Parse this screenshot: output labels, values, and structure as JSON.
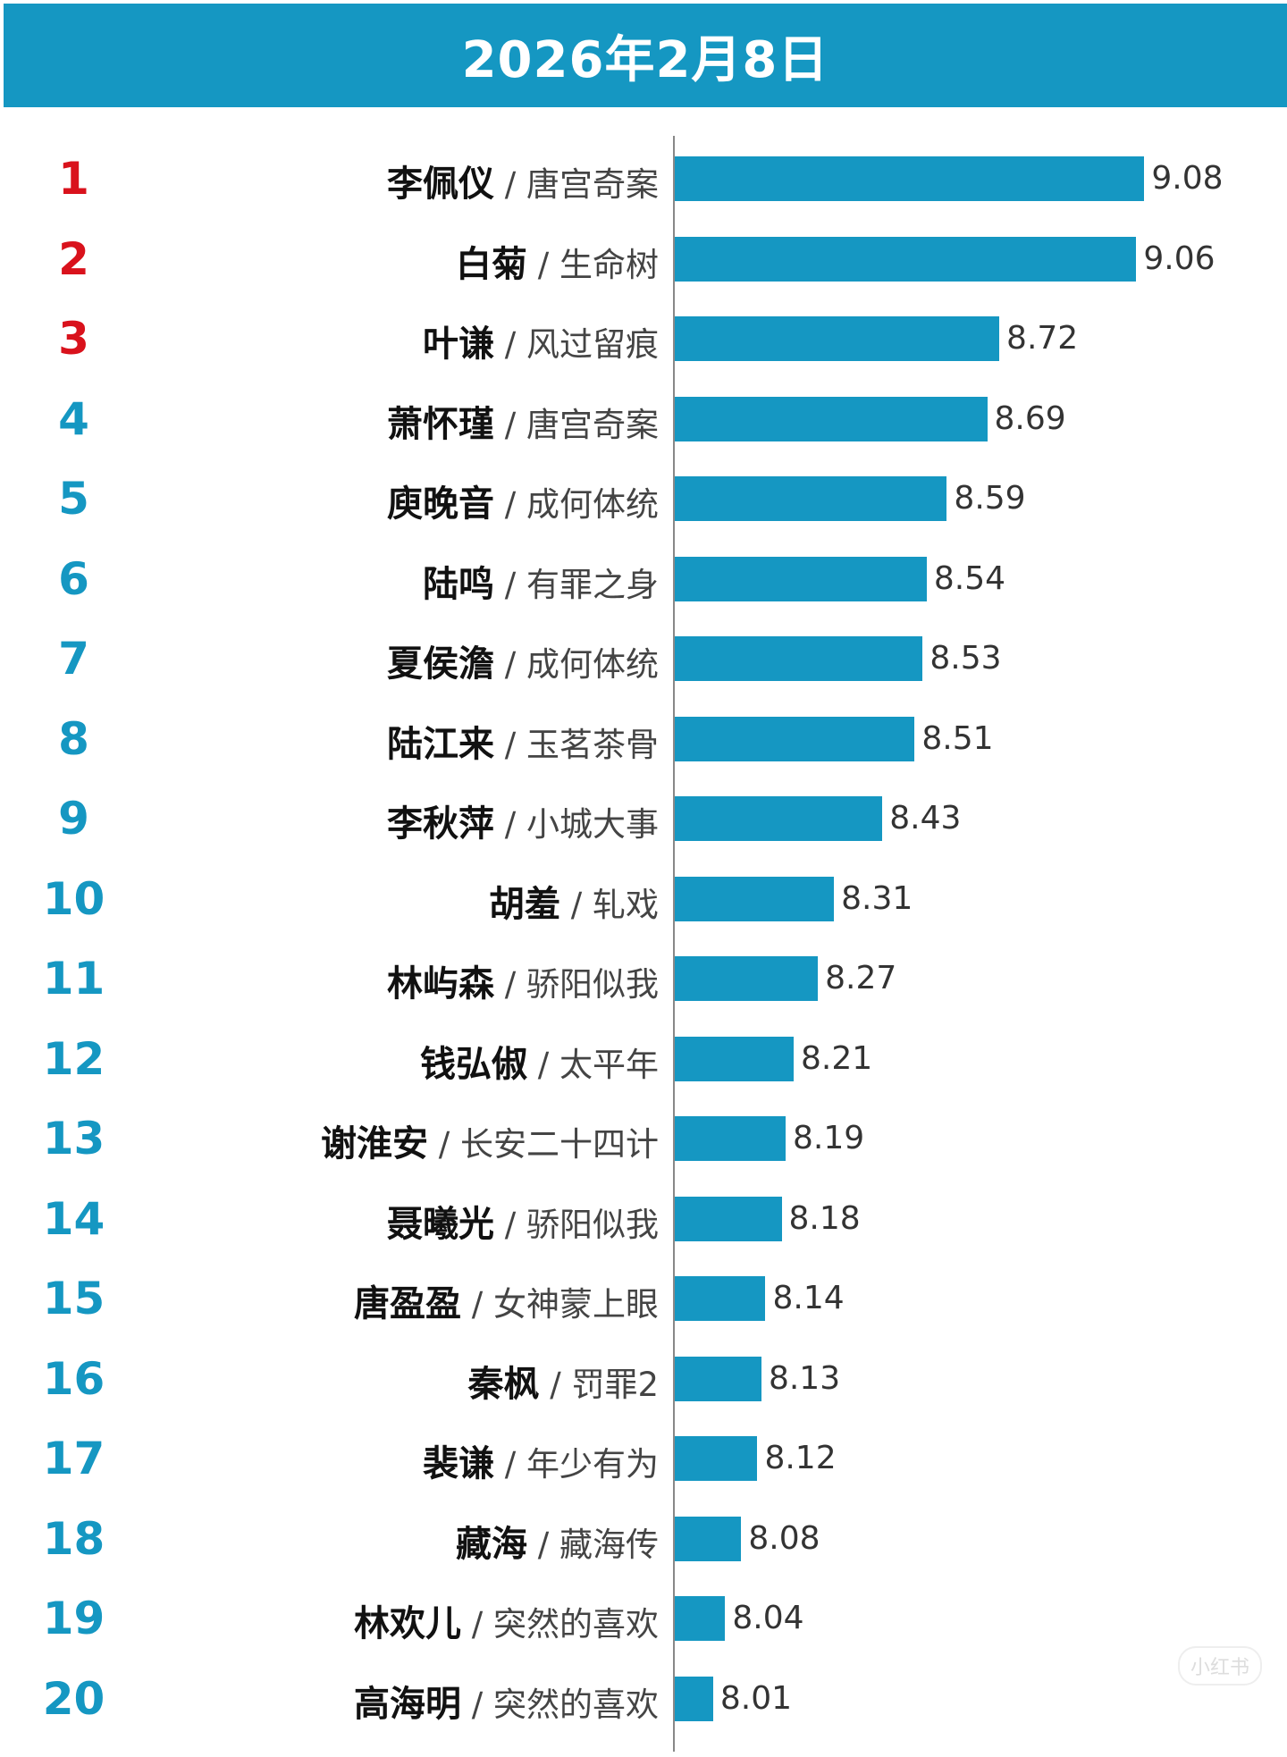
{
  "chart_data": {
    "type": "bar",
    "orientation": "horizontal",
    "title": "2026年2月8日",
    "grid": false,
    "bar_color": "#1597c2",
    "rank_colors": {
      "top3": "#d9121c",
      "others": "#1597c2"
    },
    "rows": [
      {
        "rank": "1",
        "name": "李佩仪",
        "show": "唐宫奇案",
        "value": 9.08
      },
      {
        "rank": "2",
        "name": "白菊",
        "show": "生命树",
        "value": 9.06
      },
      {
        "rank": "3",
        "name": "叶谦",
        "show": "风过留痕",
        "value": 8.72
      },
      {
        "rank": "4",
        "name": "萧怀瑾",
        "show": "唐宫奇案",
        "value": 8.69
      },
      {
        "rank": "5",
        "name": "庾晚音",
        "show": "成何体统",
        "value": 8.59
      },
      {
        "rank": "6",
        "name": "陆鸣",
        "show": "有罪之身",
        "value": 8.54
      },
      {
        "rank": "7",
        "name": "夏侯澹",
        "show": "成何体统",
        "value": 8.53
      },
      {
        "rank": "8",
        "name": "陆江来",
        "show": "玉茗茶骨",
        "value": 8.51
      },
      {
        "rank": "9",
        "name": "李秋萍",
        "show": "小城大事",
        "value": 8.43
      },
      {
        "rank": "10",
        "name": "胡羞",
        "show": "轧戏",
        "value": 8.31
      },
      {
        "rank": "11",
        "name": "林屿森",
        "show": "骄阳似我",
        "value": 8.27
      },
      {
        "rank": "12",
        "name": "钱弘俶",
        "show": "太平年",
        "value": 8.21
      },
      {
        "rank": "13",
        "name": "谢淮安",
        "show": "长安二十四计",
        "value": 8.19
      },
      {
        "rank": "14",
        "name": "聂曦光",
        "show": "骄阳似我",
        "value": 8.18
      },
      {
        "rank": "15",
        "name": "唐盈盈",
        "show": "女神蒙上眼",
        "value": 8.14
      },
      {
        "rank": "16",
        "name": "秦枫",
        "show": "罚罪2",
        "value": 8.13
      },
      {
        "rank": "17",
        "name": "裴谦",
        "show": "年少有为",
        "value": 8.12
      },
      {
        "rank": "18",
        "name": "藏海",
        "show": "藏海传",
        "value": 8.08
      },
      {
        "rank": "19",
        "name": "林欢儿",
        "show": "突然的喜欢",
        "value": 8.04
      },
      {
        "rank": "20",
        "name": "高海明",
        "show": "突然的喜欢",
        "value": 8.01
      }
    ]
  },
  "watermark": "小红书"
}
